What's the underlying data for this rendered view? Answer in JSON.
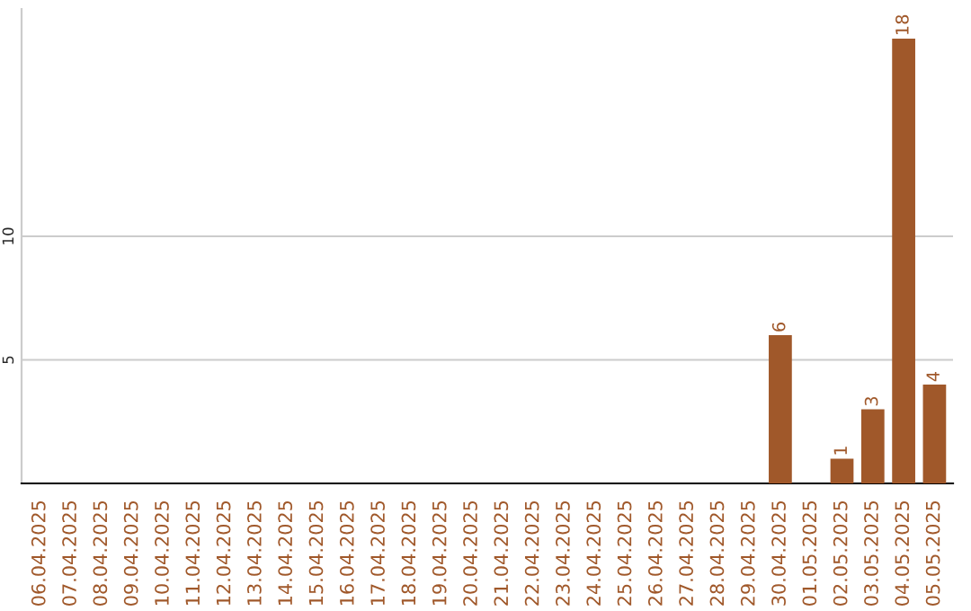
{
  "chart_data": {
    "type": "bar",
    "categories": [
      "06.04.2025",
      "07.04.2025",
      "08.04.2025",
      "09.04.2025",
      "10.04.2025",
      "11.04.2025",
      "12.04.2025",
      "13.04.2025",
      "14.04.2025",
      "15.04.2025",
      "16.04.2025",
      "17.04.2025",
      "18.04.2025",
      "19.04.2025",
      "20.04.2025",
      "21.04.2025",
      "22.04.2025",
      "23.04.2025",
      "24.04.2025",
      "25.04.2025",
      "26.04.2025",
      "27.04.2025",
      "28.04.2025",
      "29.04.2025",
      "30.04.2025",
      "01.05.2025",
      "02.05.2025",
      "03.05.2025",
      "04.05.2025",
      "05.05.2025"
    ],
    "values": [
      0,
      0,
      0,
      0,
      0,
      0,
      0,
      0,
      0,
      0,
      0,
      0,
      0,
      0,
      0,
      0,
      0,
      0,
      0,
      0,
      0,
      0,
      0,
      0,
      6,
      0,
      1,
      3,
      18,
      4
    ],
    "value_labels": [
      null,
      null,
      null,
      null,
      null,
      null,
      null,
      null,
      null,
      null,
      null,
      null,
      null,
      null,
      null,
      null,
      null,
      null,
      null,
      null,
      null,
      null,
      null,
      null,
      "6",
      null,
      "1",
      "3",
      "18",
      "4"
    ],
    "color": "#a0582a",
    "ylim": [
      0,
      19.2
    ],
    "yticks": [
      5,
      10
    ],
    "grid": "y"
  }
}
